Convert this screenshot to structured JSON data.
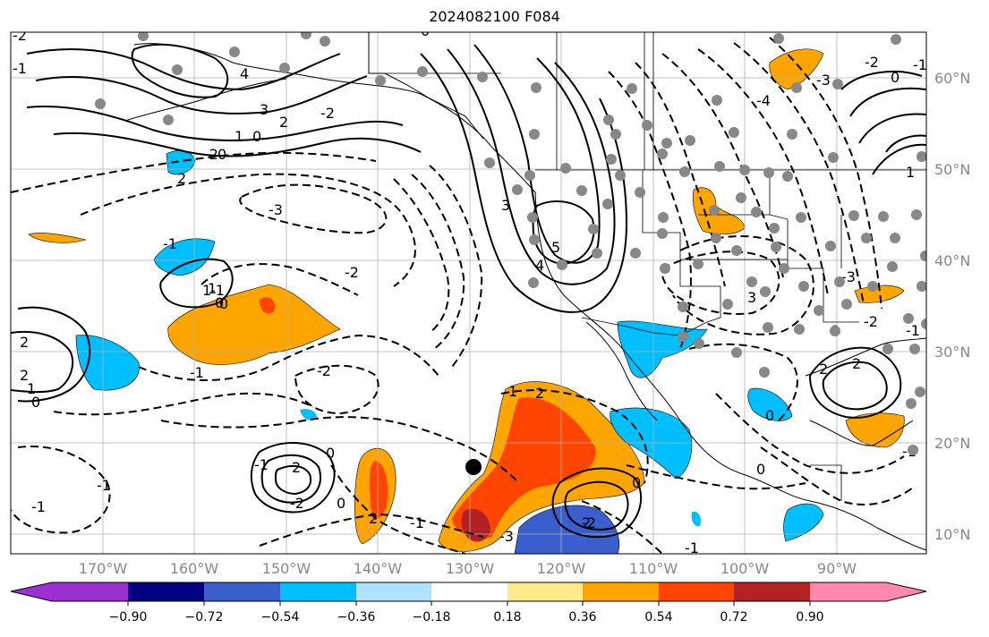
{
  "title": "2024082100 F084",
  "lat_labels": [
    "60°N",
    "50°N",
    "40°N",
    "30°N",
    "20°N",
    "10°N"
  ],
  "lon_labels": [
    "170°W",
    "160°W",
    "150°W",
    "140°W",
    "130°W",
    "120°W",
    "110°W",
    "100°W",
    "90°W"
  ],
  "colorbar": {
    "ticks": [
      "−0.90",
      "−0.72",
      "−0.54",
      "−0.36",
      "−0.18",
      "0.18",
      "0.36",
      "0.54",
      "0.72",
      "0.90"
    ],
    "colors": [
      "#9b30d0",
      "#000080",
      "#3a5fcd",
      "#00bfff",
      "#b0e2ff",
      "#ffffff",
      "#ffe98a",
      "#ffa500",
      "#ff4500",
      "#b22222",
      "#ff88b0"
    ]
  },
  "contour_labels": [
    "-2",
    "-1",
    "0",
    "4",
    "3",
    "2",
    "1",
    "0",
    "-2",
    "-3",
    "-2",
    "3",
    "5",
    "4",
    "-1",
    "0",
    "-1",
    "-2",
    "-1",
    "0",
    "1",
    "2",
    "2",
    "-1",
    "2",
    "-1",
    "0",
    "-2",
    "-1",
    "1",
    "2",
    "2",
    "0",
    "2",
    "-1",
    "0",
    "-1",
    "-4",
    "-3",
    "-2",
    "0",
    "3",
    "-2",
    "0",
    "1",
    "-3",
    "0",
    "2",
    "-1",
    "2",
    "1",
    "0",
    "-2",
    "-1",
    "2",
    "1",
    "0",
    "0",
    "-1",
    "-2",
    "-3"
  ],
  "colors": {
    "land_border": "#000000",
    "grid": "#b0b0b0",
    "axis_label": "#888888",
    "dot": "#888888",
    "marker": "#000000"
  }
}
